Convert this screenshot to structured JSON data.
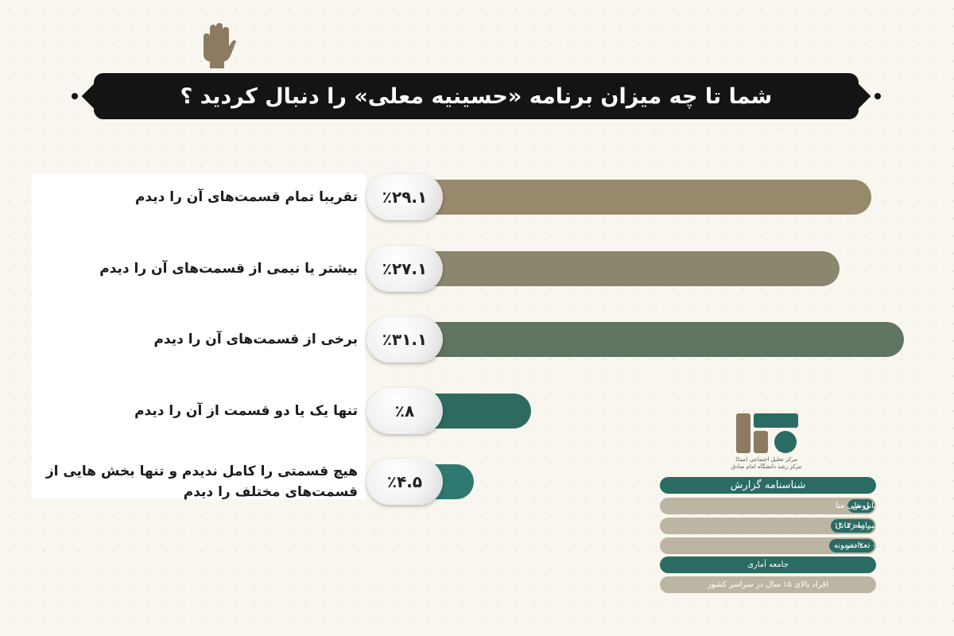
{
  "title": "شما تا چه میزان برنامه «حسینیه معلی» را دنبال کردید ؟",
  "icons": {
    "hand": "hand-icon",
    "logo": "research-center-logo"
  },
  "chart_data": {
    "type": "bar",
    "orientation": "horizontal",
    "categories": [
      "تقریبا تمام قسمت‌های آن را دیدم",
      "بیشتر یا نیمی از قسمت‌های آن را دیدم",
      "برخی از قسمت‌های آن را دیدم",
      "تنها یک یا دو قسمت از آن را دیدم",
      "هیچ قسمتی را کامل ندیدم و تنها بخش هایی از قسمت‌های مختلف را دیدم"
    ],
    "values": [
      29.1,
      27.1,
      31.1,
      8,
      4.5
    ],
    "value_labels": [
      "٪۲۹.۱",
      "٪۲۷.۱",
      "٪۳۱.۱",
      "٪۸",
      "٪۴.۵"
    ],
    "colors": [
      "#98886c",
      "#8b876e",
      "#5f7561",
      "#2e6a5f",
      "#2f7a70"
    ]
  },
  "org": {
    "name_line1": "مرکز تحلیل اجتماعی (میثا)",
    "name_line2": "مرکز رشد دانشگاه امام صادق"
  },
  "report": {
    "header": "شناسنامه گزارش",
    "method_label": "روش",
    "method_value": "پانل ملی متا",
    "period_label": "بازه زمانی",
    "period_value": "تیر ماه ۱۴۰۳",
    "sample_label": "تعداد نمونه",
    "sample_value": "۲۰۰۰ نفر",
    "population_label": "جامعه آماری",
    "population_value": "افراد بالای ۱۵ سال در سراسر کشور"
  }
}
